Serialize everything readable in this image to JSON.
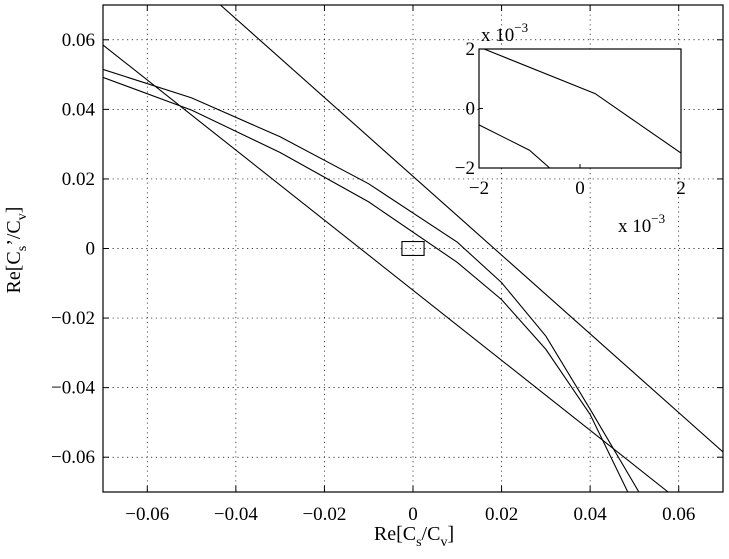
{
  "chart_data": [
    {
      "type": "line",
      "xlabel": {
        "base": "Re[C",
        "sub1": "s",
        "mid": "/C",
        "sub2": "v",
        "end": "]"
      },
      "ylabel": {
        "base": "Re[C",
        "sub1": "s",
        "mid": "’/C",
        "sub2": "v",
        "end": "]"
      },
      "xlim": [
        -0.07,
        0.07
      ],
      "ylim": [
        -0.07,
        0.07
      ],
      "xticks": [
        -0.06,
        -0.04,
        -0.02,
        0,
        0.02,
        0.04,
        0.06
      ],
      "yticks": [
        -0.06,
        -0.04,
        -0.02,
        0,
        0.02,
        0.04,
        0.06
      ],
      "xticklabels": [
        "−0.06",
        "−0.04",
        "−0.02",
        "0",
        "0.02",
        "0.04",
        "0.06"
      ],
      "yticklabels": [
        "−0.06",
        "−0.04",
        "−0.02",
        "0",
        "0.02",
        "0.04",
        "0.06"
      ],
      "grid": true,
      "series": [
        {
          "x": [
            -0.0435,
            0.07
          ],
          "y": [
            0.07,
            -0.0585
          ]
        },
        {
          "x": [
            -0.07,
            0.0576
          ],
          "y": [
            0.0585,
            -0.07
          ]
        },
        {
          "x": [
            -0.07,
            -0.05,
            -0.03,
            -0.01,
            0.01,
            0.02,
            0.03,
            0.04,
            0.051
          ],
          "y": [
            0.0515,
            0.0433,
            0.0321,
            0.0186,
            0.0018,
            -0.0098,
            -0.0252,
            -0.0462,
            -0.07
          ]
        },
        {
          "x": [
            -0.07,
            -0.05,
            -0.03,
            -0.01,
            0.01,
            0.02,
            0.03,
            0.04,
            0.0485
          ],
          "y": [
            0.0492,
            0.0398,
            0.0276,
            0.0134,
            -0.004,
            -0.0147,
            -0.029,
            -0.0477,
            -0.07
          ]
        }
      ],
      "marker_box": {
        "x": [
          -0.0025,
          0.0025
        ],
        "y": [
          -0.002,
          0.002
        ]
      }
    },
    {
      "type": "line",
      "xlim": [
        -2,
        2
      ],
      "ylim": [
        -2,
        2
      ],
      "xticks": [
        -2,
        0,
        2
      ],
      "yticks": [
        -2,
        0,
        2
      ],
      "xticklabels": [
        "−2",
        "0",
        "2"
      ],
      "yticklabels": [
        "−2",
        "0",
        "2"
      ],
      "x_multiplier": {
        "base": "x 10",
        "exp": "−3"
      },
      "y_multiplier": {
        "base": "x 10",
        "exp": "−3"
      },
      "grid": false,
      "series": [
        {
          "x": [
            -1.9,
            0.3,
            2.0
          ],
          "y": [
            2.0,
            0.5,
            -1.5
          ]
        },
        {
          "x": [
            -2.0,
            -1.0,
            -0.6
          ],
          "y": [
            -0.55,
            -1.4,
            -2.0
          ]
        }
      ]
    }
  ]
}
